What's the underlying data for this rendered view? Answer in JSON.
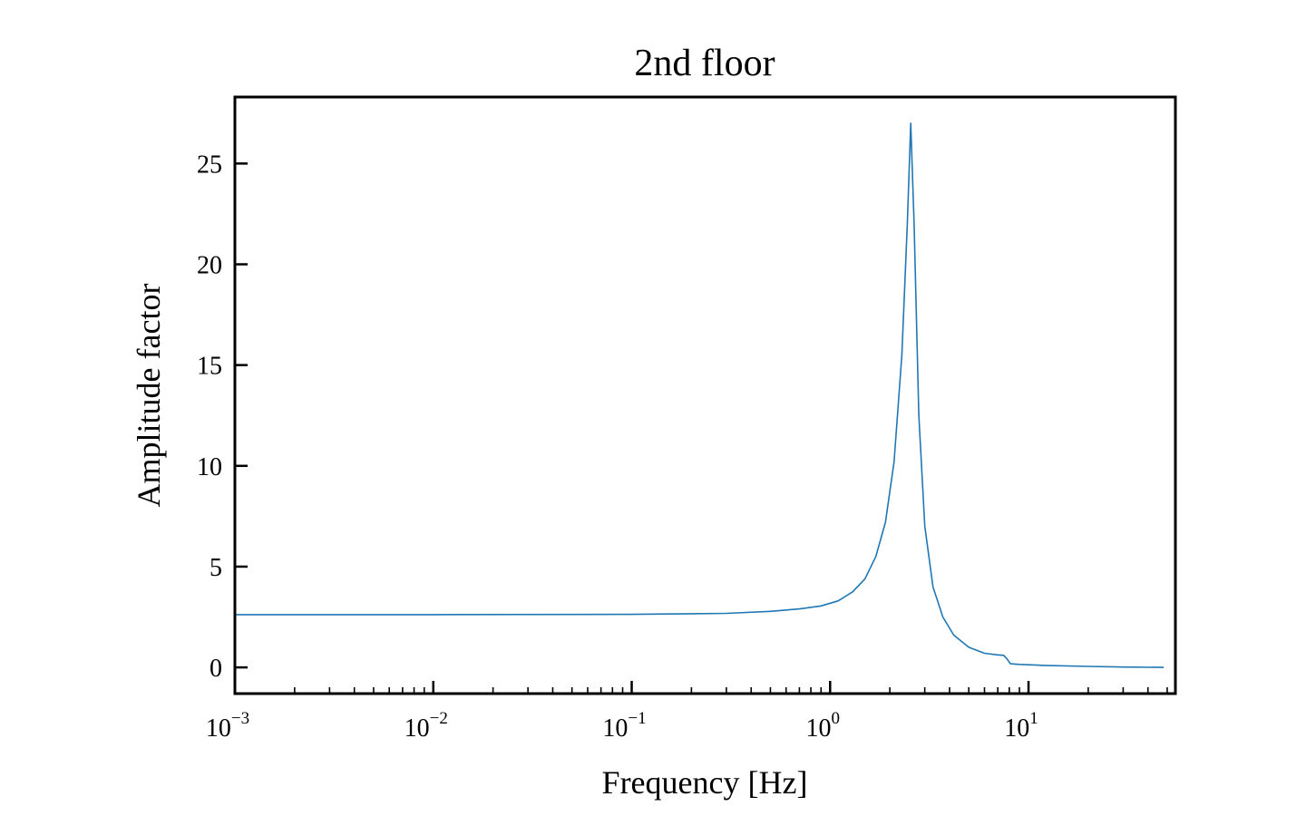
{
  "chart_data": {
    "type": "line",
    "title": "2nd floor",
    "xlabel": "Frequency [Hz]",
    "ylabel": "Amplitude factor",
    "xscale": "log",
    "xlim": [
      0.001,
      55
    ],
    "ylim": [
      -1.3,
      28.3
    ],
    "grid": false,
    "legend": "none",
    "x_ticks": [
      {
        "value": 0.001,
        "base": "10",
        "exp": "−3"
      },
      {
        "value": 0.01,
        "base": "10",
        "exp": "−2"
      },
      {
        "value": 0.1,
        "base": "10",
        "exp": "−1"
      },
      {
        "value": 1,
        "base": "10",
        "exp": "0"
      },
      {
        "value": 10,
        "base": "10",
        "exp": "1"
      }
    ],
    "y_ticks": [
      {
        "value": 0,
        "label": "0"
      },
      {
        "value": 5,
        "label": "5"
      },
      {
        "value": 10,
        "label": "10"
      },
      {
        "value": 15,
        "label": "15"
      },
      {
        "value": 20,
        "label": "20"
      },
      {
        "value": 25,
        "label": "25"
      }
    ],
    "series": [
      {
        "color": "#1f77b4",
        "points": [
          [
            0.001,
            2.62
          ],
          [
            0.01,
            2.62
          ],
          [
            0.1,
            2.63
          ],
          [
            0.3,
            2.68
          ],
          [
            0.5,
            2.78
          ],
          [
            0.7,
            2.9
          ],
          [
            0.9,
            3.05
          ],
          [
            1.1,
            3.3
          ],
          [
            1.3,
            3.75
          ],
          [
            1.5,
            4.4
          ],
          [
            1.7,
            5.5
          ],
          [
            1.9,
            7.2
          ],
          [
            2.1,
            10.2
          ],
          [
            2.3,
            15.5
          ],
          [
            2.45,
            22.0
          ],
          [
            2.55,
            27.0
          ],
          [
            2.65,
            22.0
          ],
          [
            2.8,
            12.5
          ],
          [
            3.0,
            7.0
          ],
          [
            3.3,
            4.0
          ],
          [
            3.7,
            2.5
          ],
          [
            4.2,
            1.6
          ],
          [
            5.0,
            1.0
          ],
          [
            6.0,
            0.7
          ],
          [
            7.0,
            0.62
          ],
          [
            7.5,
            0.6
          ],
          [
            7.8,
            0.42
          ],
          [
            8.1,
            0.18
          ],
          [
            9.0,
            0.15
          ],
          [
            12.0,
            0.1
          ],
          [
            20.0,
            0.05
          ],
          [
            30.0,
            0.02
          ],
          [
            48.0,
            0.0
          ]
        ]
      }
    ]
  }
}
